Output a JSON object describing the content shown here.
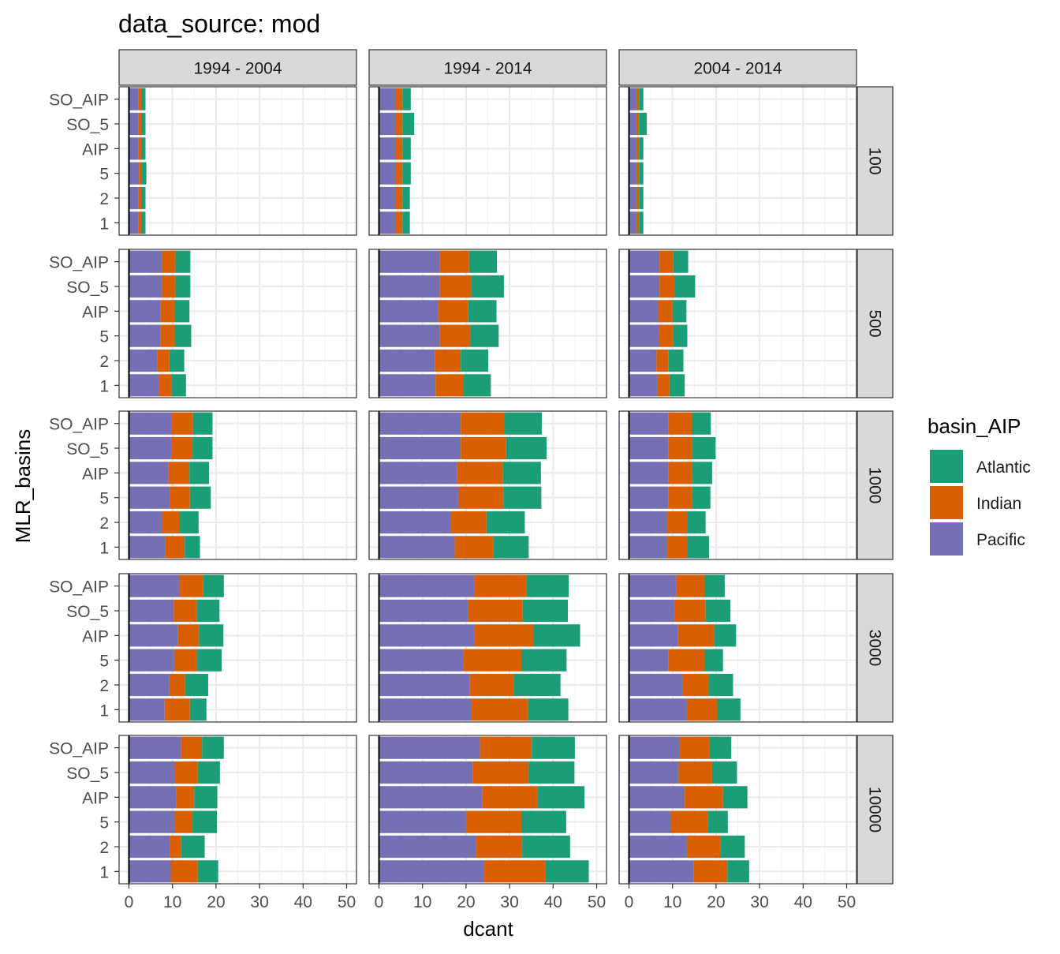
{
  "chart_data": {
    "type": "bar",
    "title": "data_source: mod",
    "xlabel": "dcant",
    "ylabel": "MLR_basins",
    "xlim": [
      0,
      50
    ],
    "x_ticks": [
      0,
      10,
      20,
      30,
      40,
      50
    ],
    "categories": [
      "1",
      "2",
      "5",
      "AIP",
      "SO_5",
      "SO_AIP"
    ],
    "column_facets": [
      "1994 - 2004",
      "1994 - 2014",
      "2004 - 2014"
    ],
    "row_facets": [
      "100",
      "500",
      "1000",
      "3000",
      "10000"
    ],
    "legend": {
      "title": "basin_AIP",
      "position": "right",
      "items": [
        {
          "name": "Atlantic",
          "color": "#1b9e77"
        },
        {
          "name": "Indian",
          "color": "#d95f02"
        },
        {
          "name": "Pacific",
          "color": "#7570b3"
        }
      ]
    },
    "stack_order": [
      "Pacific",
      "Indian",
      "Atlantic"
    ],
    "grid": true,
    "panels": {
      "100": [
        {
          "1": [
            2.2,
            0.6,
            1.0
          ],
          "2": [
            2.2,
            0.6,
            1.0
          ],
          "5": [
            2.3,
            0.6,
            1.1
          ],
          "AIP": [
            2.2,
            0.6,
            1.0
          ],
          "SO_5": [
            2.2,
            0.6,
            1.0
          ],
          "SO_AIP": [
            2.2,
            0.6,
            1.0
          ]
        },
        {
          "1": [
            3.8,
            1.6,
            1.7
          ],
          "2": [
            3.8,
            1.6,
            1.7
          ],
          "5": [
            3.8,
            1.6,
            1.9
          ],
          "AIP": [
            3.8,
            1.6,
            1.9
          ],
          "SO_5": [
            3.8,
            1.6,
            2.7
          ],
          "SO_AIP": [
            3.8,
            1.6,
            1.9
          ]
        },
        {
          "1": [
            1.7,
            0.6,
            1.0
          ],
          "2": [
            1.7,
            0.6,
            1.0
          ],
          "5": [
            1.7,
            0.6,
            1.0
          ],
          "AIP": [
            1.7,
            0.6,
            1.0
          ],
          "SO_5": [
            1.7,
            0.6,
            1.8
          ],
          "SO_AIP": [
            1.7,
            0.6,
            1.0
          ]
        }
      ],
      "500": [
        {
          "1": [
            6.9,
            2.9,
            3.3
          ],
          "2": [
            6.5,
            2.8,
            3.4
          ],
          "5": [
            7.3,
            3.2,
            3.8
          ],
          "AIP": [
            7.3,
            3.2,
            3.4
          ],
          "SO_5": [
            7.5,
            3.2,
            3.4
          ],
          "SO_AIP": [
            7.5,
            3.2,
            3.4
          ]
        },
        {
          "1": [
            13.0,
            6.3,
            6.4
          ],
          "2": [
            12.9,
            5.9,
            6.3
          ],
          "5": [
            14.0,
            7.0,
            6.5
          ],
          "AIP": [
            13.6,
            6.9,
            6.5
          ],
          "SO_5": [
            14.0,
            7.3,
            7.4
          ],
          "SO_AIP": [
            14.0,
            6.7,
            6.4
          ]
        },
        {
          "1": [
            6.5,
            2.8,
            3.5
          ],
          "2": [
            6.3,
            2.8,
            3.4
          ],
          "5": [
            6.8,
            3.3,
            3.3
          ],
          "AIP": [
            6.7,
            3.3,
            3.2
          ],
          "SO_5": [
            7.0,
            3.5,
            4.7
          ],
          "SO_AIP": [
            7.0,
            3.2,
            3.4
          ]
        }
      ],
      "1000": [
        {
          "1": [
            8.4,
            4.4,
            3.5
          ],
          "2": [
            7.6,
            3.9,
            4.5
          ],
          "5": [
            9.4,
            4.6,
            4.8
          ],
          "AIP": [
            9.0,
            4.9,
            4.5
          ],
          "SO_5": [
            9.7,
            4.9,
            4.6
          ],
          "SO_AIP": [
            9.7,
            5.0,
            4.5
          ]
        },
        {
          "1": [
            17.4,
            8.8,
            8.2
          ],
          "2": [
            16.4,
            8.3,
            8.8
          ],
          "5": [
            18.2,
            10.4,
            8.7
          ],
          "AIP": [
            18.0,
            10.5,
            8.7
          ],
          "SO_5": [
            18.8,
            10.4,
            9.3
          ],
          "SO_AIP": [
            18.8,
            10.1,
            8.5
          ]
        },
        {
          "1": [
            8.8,
            4.6,
            5.0
          ],
          "2": [
            8.8,
            4.6,
            4.2
          ],
          "5": [
            9.1,
            5.5,
            4.1
          ],
          "AIP": [
            9.1,
            5.5,
            4.5
          ],
          "SO_5": [
            9.1,
            5.5,
            5.3
          ],
          "SO_AIP": [
            9.1,
            5.3,
            4.4
          ]
        }
      ],
      "3000": [
        {
          "1": [
            8.2,
            5.8,
            3.8
          ],
          "2": [
            9.3,
            3.6,
            5.3
          ],
          "5": [
            10.4,
            5.1,
            5.8
          ],
          "AIP": [
            11.2,
            4.9,
            5.6
          ],
          "SO_5": [
            10.3,
            5.3,
            5.2
          ],
          "SO_AIP": [
            11.5,
            5.5,
            4.8
          ]
        },
        {
          "1": [
            21.3,
            12.9,
            9.3
          ],
          "2": [
            20.8,
            10.2,
            10.7
          ],
          "5": [
            19.3,
            13.4,
            10.4
          ],
          "AIP": [
            22.0,
            13.5,
            10.7
          ],
          "SO_5": [
            20.4,
            12.6,
            10.4
          ],
          "SO_AIP": [
            22.0,
            11.9,
            9.7
          ]
        },
        {
          "1": [
            13.3,
            6.9,
            5.4
          ],
          "2": [
            12.3,
            6.0,
            5.6
          ],
          "5": [
            9.0,
            8.3,
            4.3
          ],
          "AIP": [
            11.2,
            8.3,
            5.1
          ],
          "SO_5": [
            10.5,
            7.1,
            5.7
          ],
          "SO_AIP": [
            10.8,
            6.5,
            4.7
          ]
        }
      ],
      "10000": [
        {
          "1": [
            9.6,
            6.2,
            4.7
          ],
          "2": [
            9.4,
            2.6,
            5.4
          ],
          "5": [
            10.5,
            4.1,
            5.6
          ],
          "AIP": [
            10.8,
            4.2,
            5.3
          ],
          "SO_5": [
            10.5,
            5.3,
            5.1
          ],
          "SO_AIP": [
            12.0,
            4.8,
            5.0
          ]
        },
        {
          "1": [
            24.2,
            14.0,
            10.0
          ],
          "2": [
            22.3,
            10.6,
            11.0
          ],
          "5": [
            20.0,
            12.7,
            10.3
          ],
          "AIP": [
            23.8,
            12.6,
            10.8
          ],
          "SO_5": [
            21.5,
            12.9,
            10.5
          ],
          "SO_AIP": [
            23.2,
            11.9,
            9.9
          ]
        },
        {
          "1": [
            14.9,
            7.7,
            5.0
          ],
          "2": [
            13.3,
            7.7,
            5.6
          ],
          "5": [
            9.6,
            8.5,
            4.6
          ],
          "AIP": [
            12.8,
            8.8,
            5.6
          ],
          "SO_5": [
            11.4,
            7.7,
            5.7
          ],
          "SO_AIP": [
            11.7,
            6.8,
            5.0
          ]
        }
      ]
    }
  }
}
